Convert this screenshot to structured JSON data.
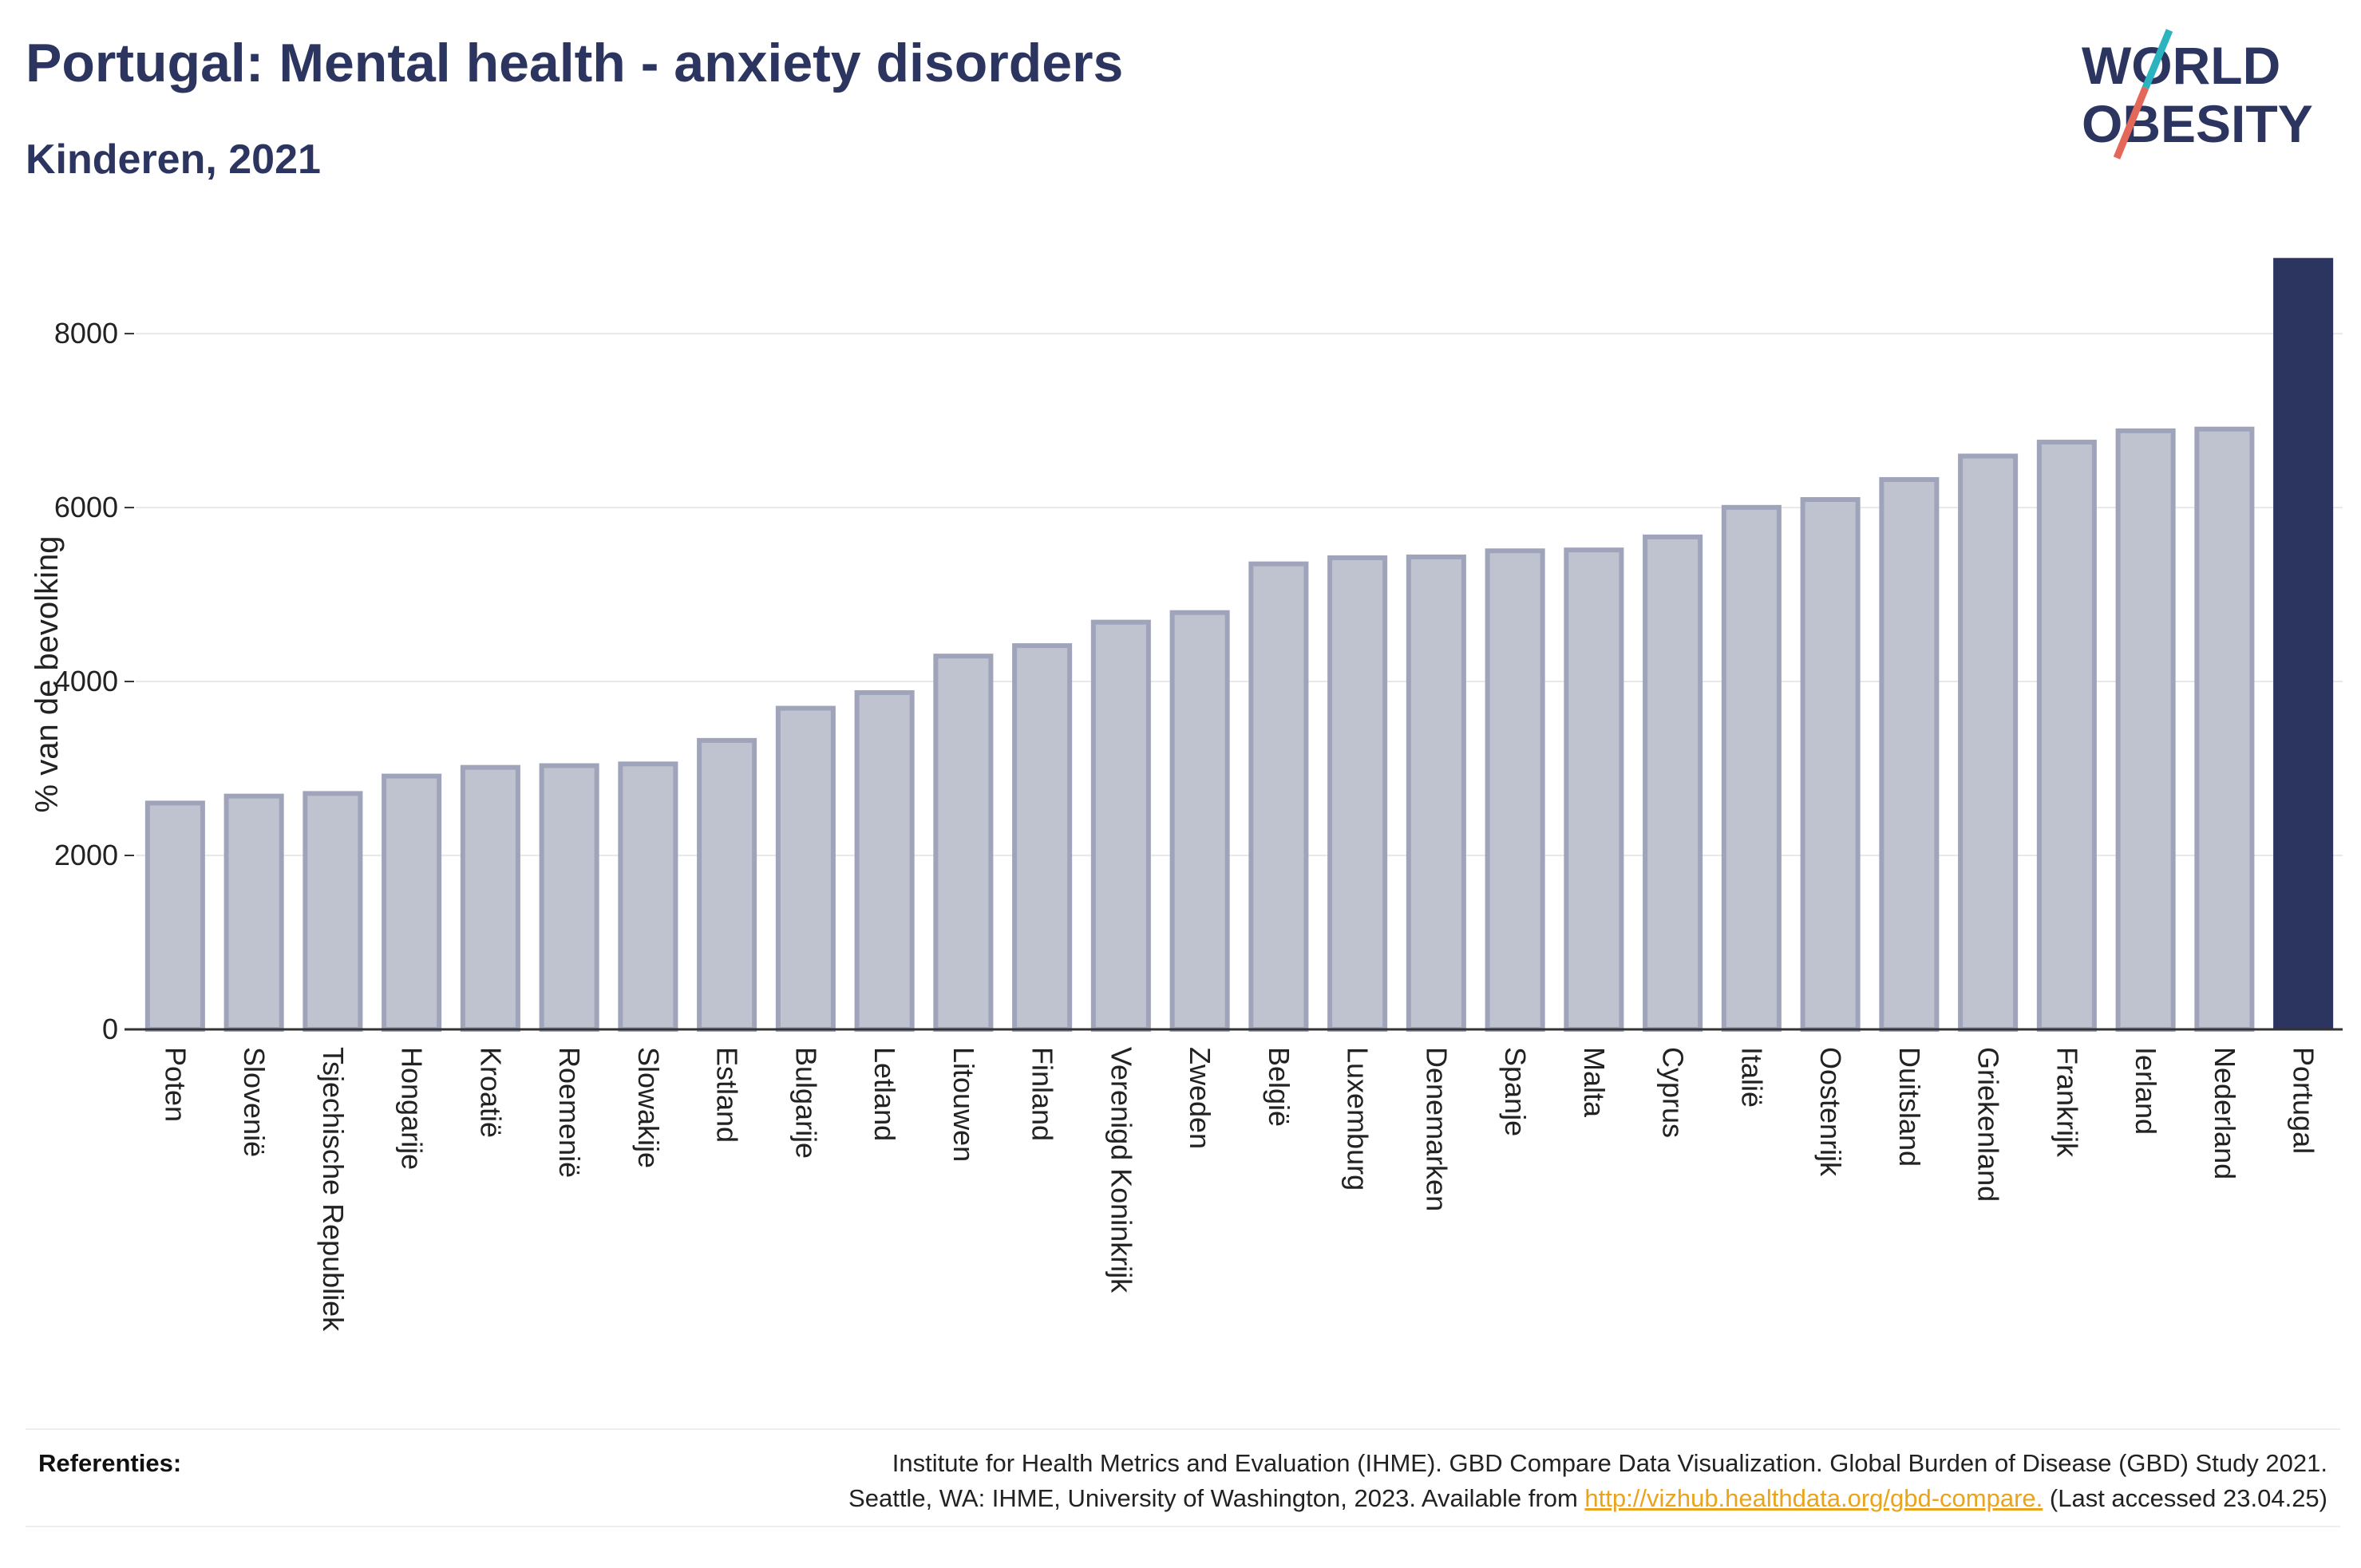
{
  "header": {
    "title": "Portugal: Mental health - anxiety disorders",
    "subtitle": "Kinderen, 2021"
  },
  "logo": {
    "line1": "WORLD",
    "line2": "OBESITY",
    "colors": {
      "text": "#2b3560",
      "slash_top": "#2bb3c0",
      "slash_bottom": "#e4685a"
    }
  },
  "chart_data": {
    "type": "bar",
    "title": "Portugal: Mental health - anxiety disorders",
    "subtitle": "Kinderen, 2021",
    "xlabel": "",
    "ylabel": "% van de bevolking",
    "ylim": [
      0,
      8900
    ],
    "yticks": [
      0,
      2000,
      4000,
      6000,
      8000
    ],
    "grid": true,
    "categories": [
      "Poten",
      "Slovenië",
      "Tsjechische Republiek",
      "Hongarije",
      "Kroatië",
      "Roemenië",
      "Slowakije",
      "Estland",
      "Bulgarije",
      "Letland",
      "Litouwen",
      "Finland",
      "Verenigd Koninkrijk",
      "Zweden",
      "België",
      "Luxemburg",
      "Denemarken",
      "Spanje",
      "Malta",
      "Cyprus",
      "Italië",
      "Oostenrijk",
      "Duitsland",
      "Griekenland",
      "Frankrijk",
      "Ierland",
      "Nederland",
      "Portugal"
    ],
    "values": [
      2630,
      2710,
      2740,
      2940,
      3040,
      3060,
      3080,
      3350,
      3720,
      3900,
      4320,
      4440,
      4710,
      4820,
      5380,
      5450,
      5460,
      5530,
      5540,
      5690,
      6030,
      6120,
      6350,
      6620,
      6780,
      6910,
      6930,
      8870
    ],
    "highlight": "Portugal",
    "colors": {
      "bar": "#bfc3d0",
      "bar_border": "#9fa4ba",
      "highlight": "#2b3560",
      "grid": "#e8e8e8",
      "axis": "#333333"
    }
  },
  "references": {
    "label": "Referenties:",
    "text_line1": "Institute for Health Metrics and Evaluation (IHME). GBD Compare Data Visualization. Global Burden of Disease (GBD) Study 2021.",
    "text_line2_pre": "Seattle, WA: IHME, University of Washington, 2023. Available from ",
    "link": "http://vizhub.healthdata.org/gbd-compare.",
    "text_line2_post": " (Last accessed 23.04.25)"
  }
}
